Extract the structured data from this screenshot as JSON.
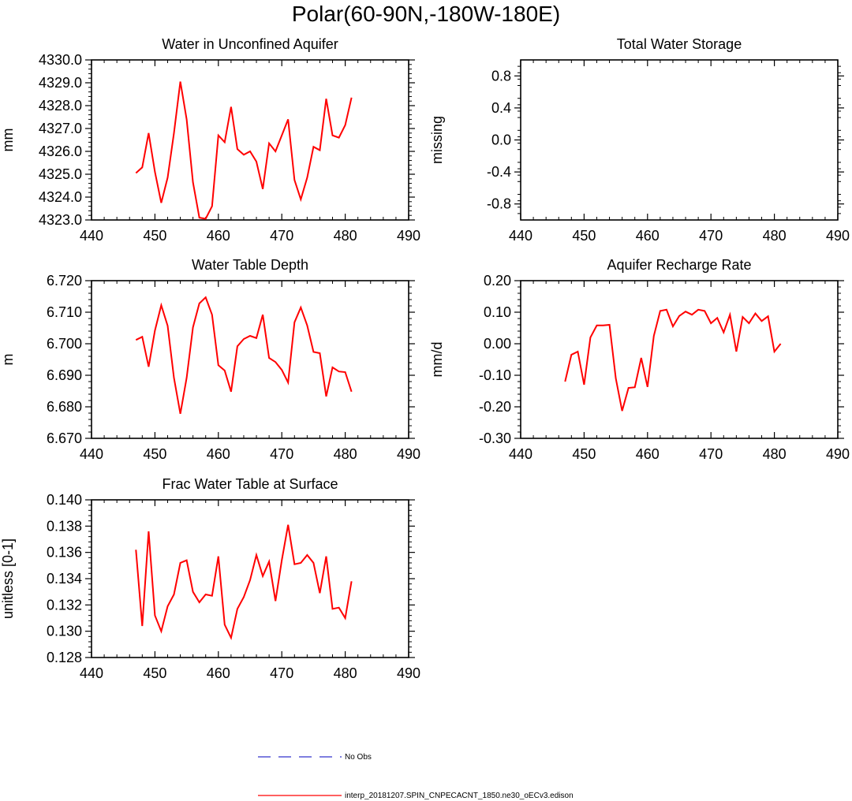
{
  "figure": {
    "title": "Polar(60-90N,-180W-180E)"
  },
  "legend": {
    "items": [
      {
        "label": "No Obs",
        "color": "#3333cc",
        "style": "dashed"
      },
      {
        "label": "interp_20181207.SPIN_CNPECACNT_1850.ne30_oECv3.edison",
        "color": "#ff0000",
        "style": "solid"
      }
    ]
  },
  "chart_data": [
    {
      "type": "line",
      "title": "Water in Unconfined Aquifer",
      "xlabel": "",
      "ylabel": "mm",
      "xlim": [
        440,
        490
      ],
      "ylim": [
        4323.0,
        4330.0
      ],
      "xticks": [
        "440",
        "450",
        "460",
        "470",
        "480",
        "490"
      ],
      "yticks": [
        "4323.0",
        "4324.0",
        "4325.0",
        "4326.0",
        "4327.0",
        "4328.0",
        "4329.0",
        "4330.0"
      ],
      "x": [
        447,
        448,
        449,
        450,
        451,
        452,
        453,
        454,
        455,
        456,
        457,
        458,
        459,
        460,
        461,
        462,
        463,
        464,
        465,
        466,
        467,
        468,
        469,
        470,
        471,
        472,
        473,
        474,
        475,
        476,
        477,
        478,
        479,
        480,
        481
      ],
      "series": [
        {
          "name": "interp_20181207.SPIN_CNPECACNT_1850.ne30_oECv3.edison",
          "color": "#ff0000",
          "values": [
            4325.05,
            4325.3,
            4326.8,
            4325.1,
            4323.75,
            4324.85,
            4326.8,
            4329.05,
            4327.4,
            4324.65,
            4323.1,
            4323.05,
            4323.6,
            4326.7,
            4326.4,
            4327.95,
            4326.1,
            4325.85,
            4326.0,
            4325.55,
            4324.35,
            4326.35,
            4326.0,
            4326.7,
            4327.4,
            4324.75,
            4323.9,
            4324.85,
            4326.2,
            4326.05,
            4328.3,
            4326.7,
            4326.6,
            4327.15,
            4328.35
          ]
        }
      ]
    },
    {
      "type": "line",
      "title": "Total Water Storage",
      "xlabel": "",
      "ylabel": "missing",
      "xlim": [
        440,
        490
      ],
      "ylim": [
        -1.0,
        1.0
      ],
      "xticks": [
        "440",
        "450",
        "460",
        "470",
        "480",
        "490"
      ],
      "yticks": [
        "-0.8",
        "-0.4",
        "0.0",
        "0.4",
        "0.8"
      ],
      "x": [],
      "series": []
    },
    {
      "type": "line",
      "title": "Water Table Depth",
      "xlabel": "",
      "ylabel": "m",
      "xlim": [
        440,
        490
      ],
      "ylim": [
        6.67,
        6.72
      ],
      "xticks": [
        "440",
        "450",
        "460",
        "470",
        "480",
        "490"
      ],
      "yticks": [
        "6.670",
        "6.680",
        "6.690",
        "6.700",
        "6.710",
        "6.720"
      ],
      "x": [
        447,
        448,
        449,
        450,
        451,
        452,
        453,
        454,
        455,
        456,
        457,
        458,
        459,
        460,
        461,
        462,
        463,
        464,
        465,
        466,
        467,
        468,
        469,
        470,
        471,
        472,
        473,
        474,
        475,
        476,
        477,
        478,
        479,
        480,
        481
      ],
      "series": [
        {
          "name": "interp_20181207.SPIN_CNPECACNT_1850.ne30_oECv3.edison",
          "color": "#ff0000",
          "values": [
            6.7012,
            6.7022,
            6.6927,
            6.7042,
            6.7122,
            6.7057,
            6.6892,
            6.6778,
            6.6892,
            6.7052,
            6.7128,
            6.7147,
            6.7092,
            6.6932,
            6.6915,
            6.6848,
            6.6992,
            6.7015,
            6.7025,
            6.7018,
            6.7092,
            6.6955,
            6.6942,
            6.6917,
            6.6877,
            6.7068,
            6.7115,
            6.7058,
            6.6974,
            6.697,
            6.6833,
            6.6925,
            6.6912,
            6.691,
            6.6848
          ]
        }
      ]
    },
    {
      "type": "line",
      "title": "Aquifer Recharge Rate",
      "xlabel": "",
      "ylabel": "mm/d",
      "xlim": [
        440,
        490
      ],
      "ylim": [
        -0.3,
        0.2
      ],
      "xticks": [
        "440",
        "450",
        "460",
        "470",
        "480",
        "490"
      ],
      "yticks": [
        "-0.30",
        "-0.20",
        "-0.10",
        "0.00",
        "0.10",
        "0.20"
      ],
      "x": [
        447,
        448,
        449,
        450,
        451,
        452,
        453,
        454,
        455,
        456,
        457,
        458,
        459,
        460,
        461,
        462,
        463,
        464,
        465,
        466,
        467,
        468,
        469,
        470,
        471,
        472,
        473,
        474,
        475,
        476,
        477,
        478,
        479,
        480,
        481
      ],
      "series": [
        {
          "name": "interp_20181207.SPIN_CNPECACNT_1850.ne30_oECv3.edison",
          "color": "#ff0000",
          "values": [
            -0.12,
            -0.035,
            -0.025,
            -0.13,
            0.02,
            0.058,
            0.058,
            0.06,
            -0.11,
            -0.213,
            -0.14,
            -0.138,
            -0.045,
            -0.137,
            0.025,
            0.104,
            0.108,
            0.055,
            0.088,
            0.102,
            0.092,
            0.108,
            0.104,
            0.065,
            0.082,
            0.036,
            0.092,
            -0.025,
            0.085,
            0.065,
            0.096,
            0.072,
            0.087,
            -0.025,
            0.0
          ]
        }
      ]
    },
    {
      "type": "line",
      "title": "Frac Water Table at Surface",
      "xlabel": "",
      "ylabel": "unitless [0-1]",
      "xlim": [
        440,
        490
      ],
      "ylim": [
        0.128,
        0.14
      ],
      "xticks": [
        "440",
        "450",
        "460",
        "470",
        "480",
        "490"
      ],
      "yticks": [
        "0.128",
        "0.130",
        "0.132",
        "0.134",
        "0.136",
        "0.138",
        "0.140"
      ],
      "x": [
        447,
        448,
        449,
        450,
        451,
        452,
        453,
        454,
        455,
        456,
        457,
        458,
        459,
        460,
        461,
        462,
        463,
        464,
        465,
        466,
        467,
        468,
        469,
        470,
        471,
        472,
        473,
        474,
        475,
        476,
        477,
        478,
        479,
        480,
        481
      ],
      "series": [
        {
          "name": "interp_20181207.SPIN_CNPECACNT_1850.ne30_oECv3.edison",
          "color": "#ff0000",
          "values": [
            0.1362,
            0.1304,
            0.1376,
            0.1312,
            0.13,
            0.1319,
            0.1328,
            0.1352,
            0.1354,
            0.133,
            0.1322,
            0.1328,
            0.1327,
            0.1357,
            0.1305,
            0.1295,
            0.1317,
            0.1326,
            0.1339,
            0.1358,
            0.1342,
            0.1353,
            0.1323,
            0.1354,
            0.1381,
            0.1351,
            0.1352,
            0.1358,
            0.1352,
            0.1329,
            0.1357,
            0.1317,
            0.1318,
            0.131,
            0.1338
          ]
        }
      ]
    }
  ]
}
